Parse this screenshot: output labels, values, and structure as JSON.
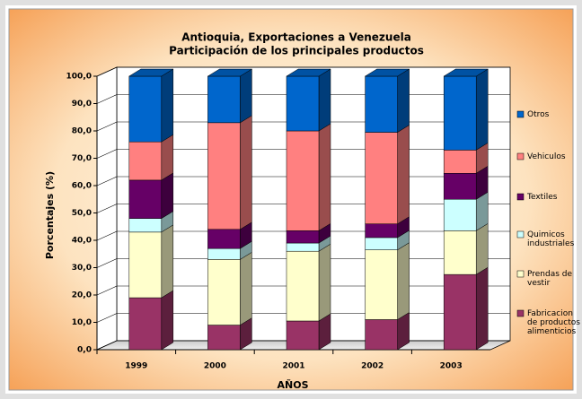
{
  "chart_data": {
    "type": "bar3d_stacked",
    "title": "Antioquia, Exportaciones a Venezuela",
    "subtitle": "Participación de los principales productos",
    "x_label": "AÑOS",
    "y_label": "Porcentajes (%)",
    "categories": [
      "1999",
      "2000",
      "2001",
      "2002",
      "2003"
    ],
    "series": [
      {
        "name": "Fabricacion de productos alimenticios",
        "color": "#993366",
        "values": [
          19,
          9,
          10.5,
          11,
          27.5
        ]
      },
      {
        "name": "Prendas de vestir",
        "color": "#FFFFCC",
        "values": [
          24,
          24,
          25.5,
          25.5,
          16
        ]
      },
      {
        "name": "Quimicos industriales",
        "color": "#CCFFFF",
        "values": [
          5,
          4,
          3,
          4.5,
          11.5
        ]
      },
      {
        "name": "Textiles",
        "color": "#660066",
        "values": [
          14,
          7,
          4.5,
          5,
          9.5
        ]
      },
      {
        "name": "Vehiculos",
        "color": "#FF8080",
        "values": [
          14,
          39,
          36.5,
          33.5,
          8.5
        ]
      },
      {
        "name": "Otros",
        "color": "#0066CC",
        "values": [
          24,
          17,
          20,
          20.5,
          27
        ]
      }
    ],
    "ylim": [
      0,
      100
    ],
    "yticks": [
      {
        "value": 0,
        "label": "0,0"
      },
      {
        "value": 10,
        "label": "10,0"
      },
      {
        "value": 20,
        "label": "20,0"
      },
      {
        "value": 30,
        "label": "30,0"
      },
      {
        "value": 40,
        "label": "40,0"
      },
      {
        "value": 50,
        "label": "50,0"
      },
      {
        "value": 60,
        "label": "60,0"
      },
      {
        "value": 70,
        "label": "70,0"
      },
      {
        "value": 80,
        "label": "80,0"
      },
      {
        "value": 90,
        "label": "90,0"
      },
      {
        "value": 100,
        "label": "100,0"
      }
    ],
    "grid": true,
    "legend": "right"
  }
}
